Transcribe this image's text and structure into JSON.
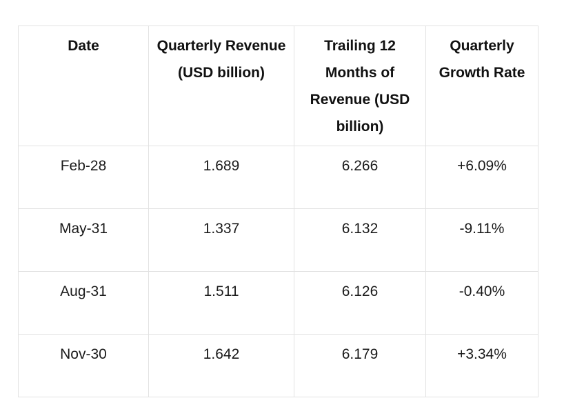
{
  "table": {
    "headers": [
      "Date",
      "Quarterly Revenue (USD billion)",
      "Trailing 12 Months of Revenue (USD billion)",
      "Quarterly Growth Rate"
    ],
    "rows": [
      [
        "Feb-28",
        "1.689",
        "6.266",
        "+6.09%"
      ],
      [
        "May-31",
        "1.337",
        "6.132",
        "-9.11%"
      ],
      [
        "Aug-31",
        "1.511",
        "6.126",
        "-0.40%"
      ],
      [
        "Nov-30",
        "1.642",
        "6.179",
        "+3.34%"
      ]
    ]
  }
}
